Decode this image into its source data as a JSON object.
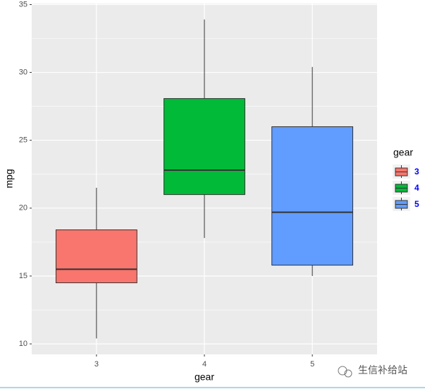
{
  "chart_data": {
    "type": "box",
    "x_label": "gear",
    "y_label": "mpg",
    "categories": [
      "3",
      "4",
      "5"
    ],
    "min": [
      10.4,
      17.8,
      15.0
    ],
    "q1": [
      14.5,
      21.0,
      15.8
    ],
    "median": [
      15.5,
      22.8,
      19.7
    ],
    "q3": [
      18.4,
      28.075,
      26.0
    ],
    "max": [
      21.5,
      33.9,
      30.4
    ],
    "colors": [
      "#F8766D",
      "#00BA38",
      "#619CFF"
    ],
    "ylim": [
      9.225,
      35.075
    ],
    "yticks": [
      10,
      15,
      20,
      25,
      30,
      35
    ],
    "yminor": [
      12.5,
      17.5,
      22.5,
      27.5,
      32.5
    ],
    "grid": true,
    "legend_title": "gear",
    "legend_position": "right",
    "watermark": "生信补给站"
  }
}
